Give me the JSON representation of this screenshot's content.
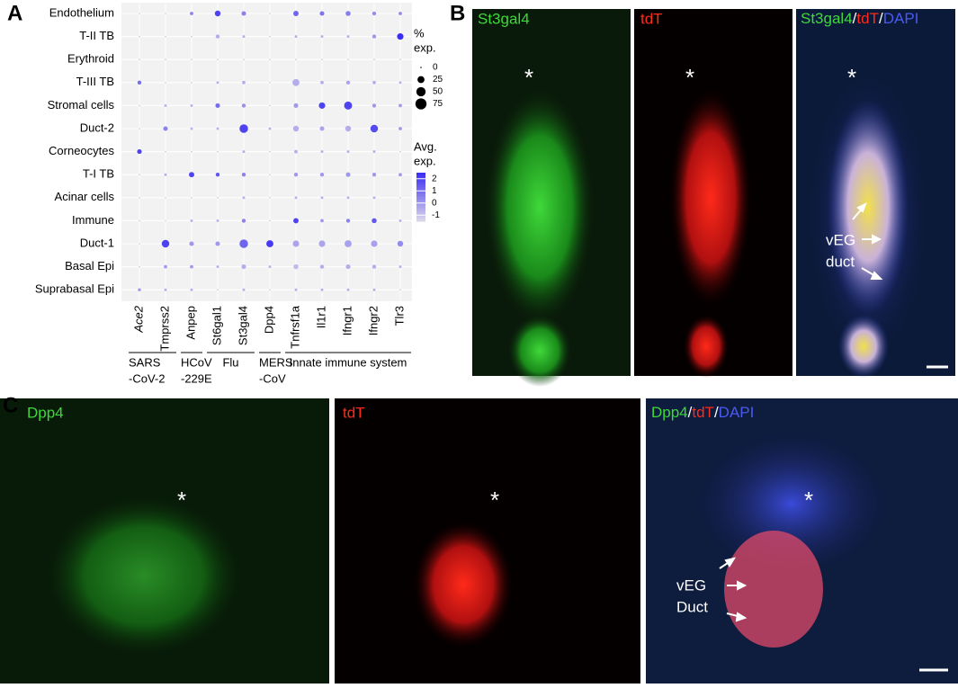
{
  "panel_labels": [
    "A",
    "B",
    "C"
  ],
  "chart_data": {
    "type": "dot",
    "rows": [
      "Endothelium",
      "T-II TB",
      "Erythroid",
      "T-III TB",
      "Stromal cells",
      "Duct-2",
      "Corneocytes",
      "T-I TB",
      "Acinar cells",
      "Immune",
      "Duct-1",
      "Basal Epi",
      "Suprabasal Epi"
    ],
    "columns": [
      "Ace2",
      "Tmprss2",
      "Anpep",
      "St6gal1",
      "St3gal4",
      "Dpp4",
      "Tnfrsf1a",
      "Il1r1",
      "Ifngr1",
      "Ifngr2",
      "Tlr3"
    ],
    "groups": [
      {
        "lines": [
          "SARS",
          "-CoV-2"
        ],
        "members": [
          "Ace2",
          "Tmprss2"
        ]
      },
      {
        "lines": [
          "HCoV",
          "-229E"
        ],
        "members": [
          "Anpep"
        ]
      },
      {
        "lines": [
          "Flu"
        ],
        "members": [
          "St6gal1",
          "St3gal4"
        ]
      },
      {
        "lines": [
          "MERS",
          "-CoV"
        ],
        "members": [
          "Dpp4"
        ]
      },
      {
        "lines": [
          "Innate immune system"
        ],
        "members": [
          "Tnfrsf1a",
          "Il1r1",
          "Ifngr1",
          "Ifngr2",
          "Tlr3"
        ]
      }
    ],
    "pct_exp": [
      [
        0,
        0,
        3,
        15,
        8,
        0,
        12,
        8,
        10,
        5,
        3
      ],
      [
        0,
        0,
        0,
        5,
        1,
        0,
        1,
        1,
        1,
        5,
        20
      ],
      [
        0,
        0,
        0,
        0,
        0,
        0,
        0,
        0,
        0,
        0,
        0
      ],
      [
        5,
        0,
        0,
        1,
        3,
        0,
        25,
        3,
        5,
        3,
        1
      ],
      [
        0,
        1,
        1,
        8,
        5,
        0,
        8,
        20,
        35,
        5,
        3
      ],
      [
        0,
        8,
        1,
        1,
        40,
        1,
        15,
        8,
        15,
        30,
        3
      ],
      [
        8,
        0,
        0,
        0,
        1,
        0,
        3,
        1,
        1,
        1,
        0
      ],
      [
        0,
        1,
        12,
        5,
        5,
        0,
        5,
        5,
        8,
        5,
        3
      ],
      [
        0,
        0,
        0,
        0,
        1,
        0,
        1,
        1,
        1,
        1,
        0
      ],
      [
        0,
        0,
        1,
        1,
        5,
        0,
        12,
        3,
        5,
        10,
        1
      ],
      [
        0,
        30,
        8,
        8,
        40,
        25,
        20,
        20,
        25,
        20,
        15
      ],
      [
        0,
        3,
        3,
        1,
        8,
        1,
        10,
        5,
        8,
        5,
        1
      ],
      [
        2,
        1,
        1,
        0,
        1,
        0,
        1,
        1,
        1,
        1,
        0
      ]
    ],
    "avg_exp": [
      [
        -1,
        -1,
        0.5,
        2,
        0.5,
        -1,
        1.2,
        0.8,
        0.6,
        0.3,
        0.3
      ],
      [
        -1,
        -1,
        -1,
        -0.5,
        -0.5,
        -1,
        -0.5,
        -0.5,
        -0.5,
        0,
        2.5
      ],
      [
        -1,
        -1,
        -1,
        -1,
        -1,
        -1,
        -1,
        -1,
        -1,
        -1,
        -1
      ],
      [
        1,
        -1,
        -1,
        -0.5,
        -0.5,
        -1,
        -0.5,
        -0.5,
        -0.3,
        -0.5,
        -0.5
      ],
      [
        -1,
        -0.5,
        -0.5,
        1,
        0.2,
        -1,
        0,
        2,
        2,
        0,
        0
      ],
      [
        -1,
        0.5,
        -0.5,
        -0.5,
        2,
        -0.5,
        -0.5,
        -0.3,
        -0.5,
        1.8,
        0
      ],
      [
        2,
        -1,
        -1,
        -1,
        -0.5,
        -1,
        -0.5,
        -0.5,
        -0.5,
        -0.5,
        -1
      ],
      [
        -1,
        -0.5,
        2,
        1.5,
        0.5,
        -1,
        0,
        0,
        0,
        0,
        0
      ],
      [
        -1,
        -1,
        -1,
        -1,
        -0.5,
        -1,
        -0.5,
        -0.5,
        -0.5,
        -0.5,
        -1
      ],
      [
        -1,
        -1,
        -0.5,
        -0.5,
        0.5,
        -1,
        2,
        0,
        0.5,
        1.5,
        -0.5
      ],
      [
        -1,
        2,
        0,
        0,
        1.2,
        2.2,
        -0.3,
        -0.3,
        -0.2,
        -0.2,
        0.3
      ],
      [
        -1,
        0,
        0,
        -0.5,
        -0.5,
        -0.5,
        -0.8,
        -0.5,
        -0.5,
        -0.5,
        -0.5
      ],
      [
        0,
        -0.5,
        -0.5,
        -1,
        -0.5,
        -1,
        -0.5,
        -0.5,
        -0.5,
        -0.5,
        -1
      ]
    ],
    "size_legend": {
      "title": [
        "%",
        "exp."
      ],
      "values": [
        0,
        25,
        50,
        75
      ]
    },
    "color_legend": {
      "title": [
        "Avg.",
        "exp."
      ],
      "clim": [
        -1.5,
        2.5
      ],
      "ticks": [
        2,
        1,
        0,
        -1
      ],
      "colors": [
        "#dcd8ea",
        "#3a2cf2"
      ]
    }
  },
  "panel_b": {
    "channels": [
      "St3gal4",
      "tdT"
    ],
    "merge": [
      "St3gal4",
      "/",
      "tdT",
      "/",
      "DAPI"
    ],
    "star": "*",
    "annotation": [
      "vEG",
      "duct"
    ]
  },
  "panel_c": {
    "channels": [
      "Dpp4",
      "tdT"
    ],
    "merge": [
      "Dpp4",
      "/",
      "tdT",
      "/",
      "DAPI"
    ],
    "star": "*",
    "annotation": [
      "vEG",
      "Duct"
    ]
  }
}
